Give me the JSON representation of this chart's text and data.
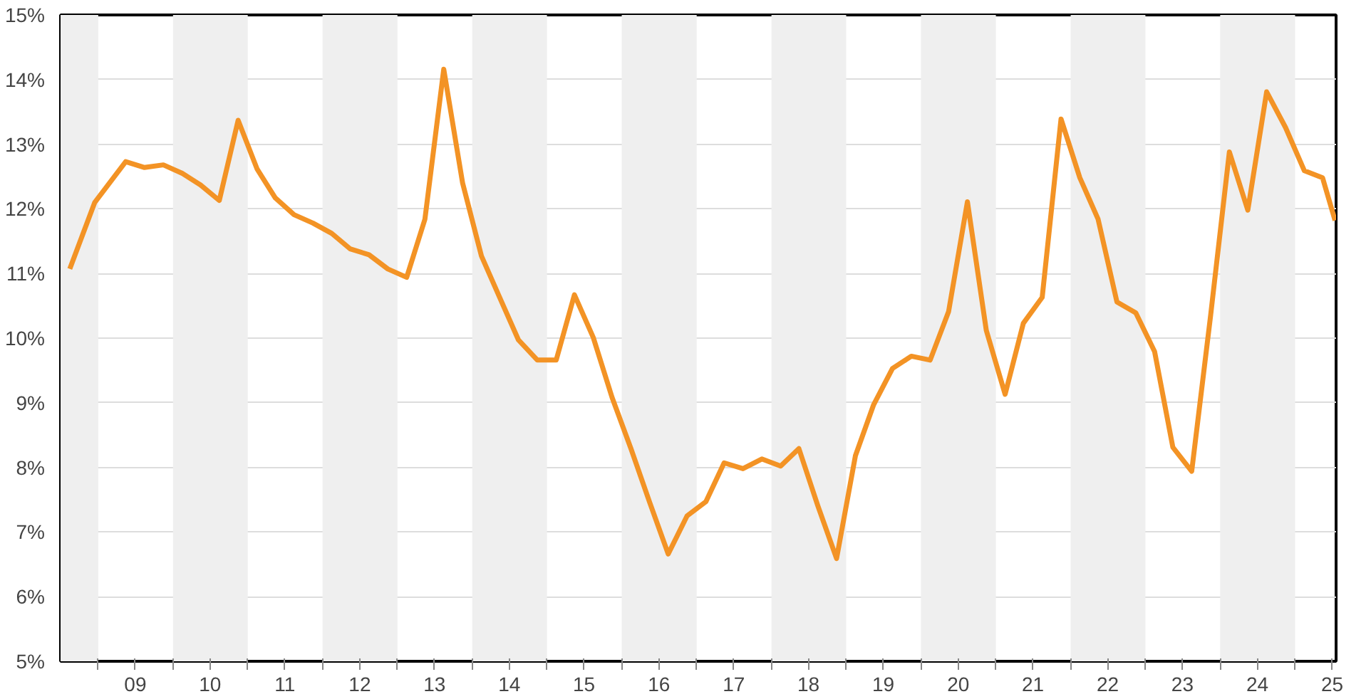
{
  "chart_data": {
    "type": "line",
    "x": [
      "2008-08",
      "2008-12",
      "2009-05",
      "2009-08",
      "2009-11",
      "2010-02",
      "2010-05",
      "2010-08",
      "2010-11",
      "2011-02",
      "2011-05",
      "2011-08",
      "2011-11",
      "2012-02",
      "2012-05",
      "2012-08",
      "2012-11",
      "2013-02",
      "2013-05",
      "2013-08",
      "2013-11",
      "2014-02",
      "2014-05",
      "2014-08",
      "2014-11",
      "2015-02",
      "2015-05",
      "2015-08",
      "2015-11",
      "2016-02",
      "2016-05",
      "2016-08",
      "2016-11",
      "2017-02",
      "2017-05",
      "2017-08",
      "2017-11",
      "2018-02",
      "2018-05",
      "2018-08",
      "2018-11",
      "2019-02",
      "2019-05",
      "2019-08",
      "2019-11",
      "2020-02",
      "2020-05",
      "2020-08",
      "2020-11",
      "2021-02",
      "2021-05",
      "2021-08",
      "2021-11",
      "2022-02",
      "2022-05",
      "2022-08",
      "2022-11",
      "2023-02",
      "2023-05",
      "2023-08",
      "2023-11",
      "2024-02",
      "2024-05",
      "2024-08",
      "2024-11",
      "2025-02",
      "2025-05",
      "2025-07"
    ],
    "series": [
      {
        "color": "#f39325",
        "values": [
          11.07,
          12.1,
          12.73,
          12.64,
          12.68,
          12.55,
          12.37,
          12.13,
          13.37,
          12.62,
          12.17,
          11.91,
          11.78,
          11.62,
          11.38,
          11.29,
          11.07,
          10.94,
          11.84,
          14.16,
          12.4,
          11.27,
          10.63,
          9.97,
          9.66,
          9.66,
          10.67,
          10.01,
          9.08,
          8.29,
          7.47,
          6.66,
          7.25,
          7.47,
          8.07,
          7.98,
          8.13,
          8.02,
          8.29,
          7.41,
          6.59,
          8.18,
          8.97,
          9.53,
          9.72,
          9.66,
          10.41,
          12.11,
          10.12,
          9.13,
          10.23,
          10.63,
          13.39,
          12.48,
          11.84,
          10.56,
          10.39,
          9.79,
          8.31,
          7.94,
          10.34,
          12.88,
          11.98,
          13.81,
          13.26,
          12.59,
          12.48,
          11.82
        ]
      }
    ],
    "xlim": [
      "2008-07-01",
      "2025-07-20"
    ],
    "xticks": [
      {
        "value": "2009-01-01",
        "label": null
      },
      {
        "value": "2009-07-01",
        "label": "09"
      },
      {
        "value": "2010-01-01",
        "label": null
      },
      {
        "value": "2010-07-01",
        "label": "10"
      },
      {
        "value": "2011-01-01",
        "label": null
      },
      {
        "value": "2011-07-01",
        "label": "11"
      },
      {
        "value": "2012-01-01",
        "label": null
      },
      {
        "value": "2012-07-01",
        "label": "12"
      },
      {
        "value": "2013-01-01",
        "label": null
      },
      {
        "value": "2013-07-01",
        "label": "13"
      },
      {
        "value": "2014-01-01",
        "label": null
      },
      {
        "value": "2014-07-01",
        "label": "14"
      },
      {
        "value": "2015-01-01",
        "label": null
      },
      {
        "value": "2015-07-01",
        "label": "15"
      },
      {
        "value": "2016-01-01",
        "label": null
      },
      {
        "value": "2016-07-01",
        "label": "16"
      },
      {
        "value": "2017-01-01",
        "label": null
      },
      {
        "value": "2017-07-01",
        "label": "17"
      },
      {
        "value": "2018-01-01",
        "label": null
      },
      {
        "value": "2018-07-01",
        "label": "18"
      },
      {
        "value": "2019-01-01",
        "label": null
      },
      {
        "value": "2019-07-01",
        "label": "19"
      },
      {
        "value": "2020-01-01",
        "label": null
      },
      {
        "value": "2020-07-01",
        "label": "20"
      },
      {
        "value": "2021-01-01",
        "label": null
      },
      {
        "value": "2021-07-01",
        "label": "21"
      },
      {
        "value": "2022-01-01",
        "label": null
      },
      {
        "value": "2022-07-01",
        "label": "22"
      },
      {
        "value": "2023-01-01",
        "label": null
      },
      {
        "value": "2023-07-01",
        "label": "23"
      },
      {
        "value": "2024-01-01",
        "label": null
      },
      {
        "value": "2024-07-01",
        "label": "24"
      },
      {
        "value": "2025-01-01",
        "label": null
      },
      {
        "value": "2025-07-01",
        "label": "25"
      }
    ],
    "ylim": [
      5,
      15
    ],
    "yticks": [
      {
        "value": 5,
        "label": "5%"
      },
      {
        "value": 6,
        "label": "6%"
      },
      {
        "value": 7,
        "label": "7%"
      },
      {
        "value": 8,
        "label": "8%"
      },
      {
        "value": 9,
        "label": "9%"
      },
      {
        "value": 10,
        "label": "10%"
      },
      {
        "value": 11,
        "label": "11%"
      },
      {
        "value": 12,
        "label": "12%"
      },
      {
        "value": 13,
        "label": "13%"
      },
      {
        "value": 14,
        "label": "14%"
      },
      {
        "value": 15,
        "label": "15%"
      }
    ],
    "bands": [
      {
        "axis": "x",
        "from": "2008-07-01",
        "to": "2009-01-01",
        "color": "#efefef"
      },
      {
        "axis": "x",
        "from": "2010-01-01",
        "to": "2011-01-01",
        "color": "#efefef"
      },
      {
        "axis": "x",
        "from": "2012-01-01",
        "to": "2013-01-01",
        "color": "#efefef"
      },
      {
        "axis": "x",
        "from": "2014-01-01",
        "to": "2015-01-01",
        "color": "#efefef"
      },
      {
        "axis": "x",
        "from": "2016-01-01",
        "to": "2017-01-01",
        "color": "#efefef"
      },
      {
        "axis": "x",
        "from": "2018-01-01",
        "to": "2019-01-01",
        "color": "#efefef"
      },
      {
        "axis": "x",
        "from": "2020-01-01",
        "to": "2021-01-01",
        "color": "#efefef"
      },
      {
        "axis": "x",
        "from": "2022-01-01",
        "to": "2023-01-01",
        "color": "#efefef"
      },
      {
        "axis": "x",
        "from": "2024-01-01",
        "to": "2025-01-01",
        "color": "#efefef"
      }
    ],
    "grid": "y",
    "line_style": "solid"
  }
}
